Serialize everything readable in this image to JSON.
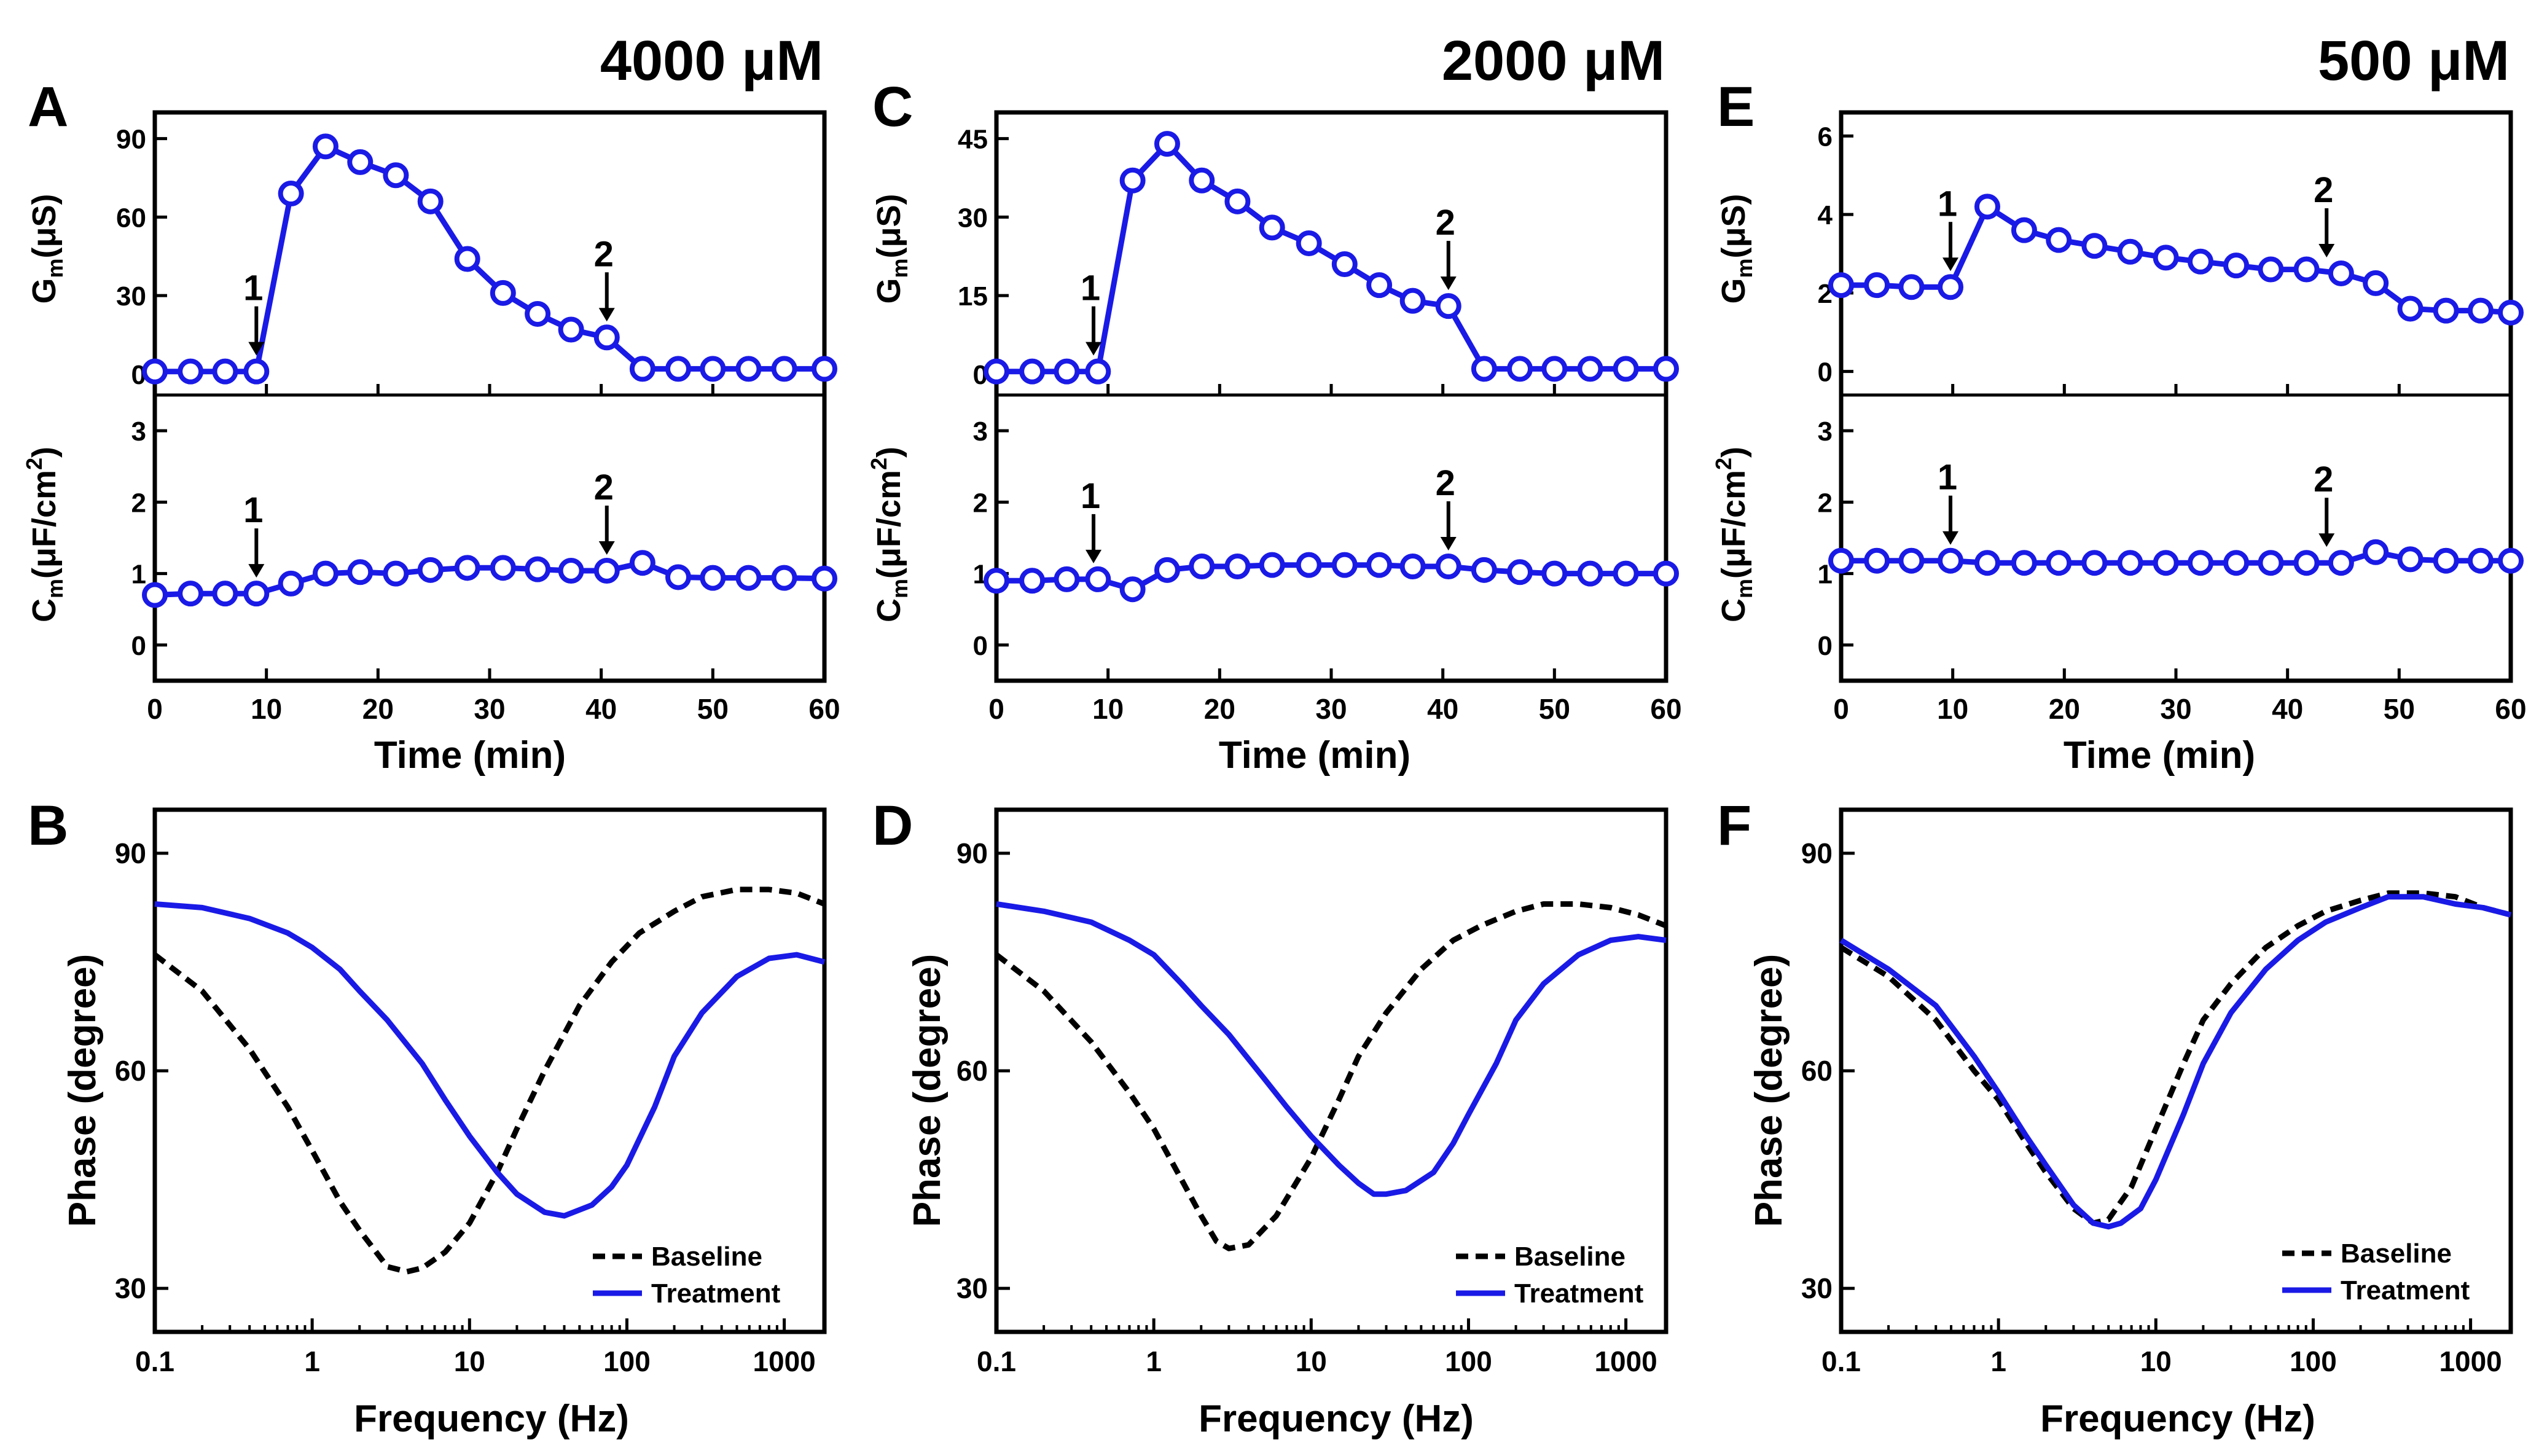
{
  "figure": {
    "panel_letters": [
      "A",
      "B",
      "C",
      "D",
      "E",
      "F"
    ],
    "concentrations": [
      "4000 μM",
      "2000 μM",
      "500 μM"
    ],
    "time_xlabel": "Time (min)",
    "gm_label": "G",
    "gm_sub": "m",
    "gm_unit": "(μS)",
    "cm_label": "C",
    "cm_sub": "m",
    "cm_unit_a": "(μF/cm",
    "cm_unit_sup": "2",
    "cm_unit_b": ")",
    "freq_xlabel": "Frequency (Hz)",
    "phase_ylabel": "Phase (degree)",
    "legend_baseline": "Baseline",
    "legend_treatment": "Treatment",
    "series_color": "#1a1ae6",
    "baseline_color": "#000000"
  },
  "chart_data": [
    {
      "panel": "A",
      "type": "line",
      "title": "4000 μM",
      "xlabel": "Time (min)",
      "xlim": [
        0,
        60
      ],
      "x_ticks": [
        0,
        10,
        20,
        30,
        40,
        50,
        60
      ],
      "subplots": [
        {
          "ylabel": "Gm(μS)",
          "ylim": [
            -8,
            100
          ],
          "y_ticks": [
            0,
            30,
            60,
            90
          ],
          "x": [
            0,
            3.2,
            6.3,
            9.1,
            12.2,
            15.3,
            18.4,
            21.6,
            24.7,
            28,
            31.2,
            34.3,
            37.3,
            40.5,
            43.7,
            46.9,
            50,
            53.2,
            56.4,
            60
          ],
          "y": [
            1,
            1,
            1,
            1,
            69,
            87,
            81,
            76,
            66,
            44,
            31,
            23,
            17,
            14,
            2,
            2,
            2,
            2,
            2,
            2
          ],
          "arrows": [
            {
              "label": "1",
              "x": 9.1
            },
            {
              "label": "2",
              "x": 40.5
            }
          ]
        },
        {
          "ylabel": "Cm(μF/cm2)",
          "ylim": [
            -0.5,
            3.5
          ],
          "y_ticks": [
            0,
            1,
            2,
            3
          ],
          "x": [
            0,
            3.2,
            6.3,
            9.1,
            12.2,
            15.3,
            18.4,
            21.6,
            24.7,
            28,
            31.2,
            34.3,
            37.3,
            40.5,
            43.7,
            46.9,
            50,
            53.2,
            56.4,
            60
          ],
          "y": [
            0.7,
            0.72,
            0.72,
            0.72,
            0.86,
            1.0,
            1.02,
            1.0,
            1.05,
            1.08,
            1.08,
            1.06,
            1.04,
            1.04,
            1.15,
            0.95,
            0.94,
            0.94,
            0.94,
            0.93
          ],
          "arrows": [
            {
              "label": "1",
              "x": 9.1
            },
            {
              "label": "2",
              "x": 40.5
            }
          ]
        }
      ]
    },
    {
      "panel": "C",
      "type": "line",
      "title": "2000 μM",
      "xlabel": "Time (min)",
      "xlim": [
        0,
        60
      ],
      "x_ticks": [
        0,
        10,
        20,
        30,
        40,
        50,
        60
      ],
      "subplots": [
        {
          "ylabel": "Gm(μS)",
          "ylim": [
            -4,
            50
          ],
          "y_ticks": [
            0,
            15,
            30,
            45
          ],
          "x": [
            0,
            3.2,
            6.3,
            9.1,
            12.2,
            15.3,
            18.4,
            21.6,
            24.7,
            28,
            31.2,
            34.3,
            37.3,
            40.5,
            43.7,
            46.9,
            50,
            53.2,
            56.4,
            60
          ],
          "y": [
            0.5,
            0.5,
            0.5,
            0.5,
            37,
            44,
            37,
            33,
            28,
            25,
            21,
            17,
            14,
            13,
            1,
            1,
            1,
            1,
            1,
            1
          ],
          "arrows": [
            {
              "label": "1",
              "x": 8.7
            },
            {
              "label": "2",
              "x": 40.5
            }
          ]
        },
        {
          "ylabel": "Cm(μF/cm2)",
          "ylim": [
            -0.5,
            3.5
          ],
          "y_ticks": [
            0,
            1,
            2,
            3
          ],
          "x": [
            0,
            3.2,
            6.3,
            9.1,
            12.2,
            15.3,
            18.4,
            21.6,
            24.7,
            28,
            31.2,
            34.3,
            37.3,
            40.5,
            43.7,
            46.9,
            50,
            53.2,
            56.4,
            60
          ],
          "y": [
            0.9,
            0.9,
            0.92,
            0.92,
            0.78,
            1.05,
            1.1,
            1.1,
            1.12,
            1.12,
            1.12,
            1.12,
            1.1,
            1.1,
            1.05,
            1.02,
            1.0,
            1.0,
            1.0,
            1.0
          ],
          "arrows": [
            {
              "label": "1",
              "x": 8.7
            },
            {
              "label": "2",
              "x": 40.5
            }
          ]
        }
      ]
    },
    {
      "panel": "E",
      "type": "line",
      "title": "500 μM",
      "xlabel": "Time (min)",
      "xlim": [
        0,
        60
      ],
      "x_ticks": [
        0,
        10,
        20,
        30,
        40,
        50,
        60
      ],
      "subplots": [
        {
          "ylabel": "Gm(μS)",
          "ylim": [
            -0.6,
            6.6
          ],
          "y_ticks": [
            0,
            2,
            4,
            6
          ],
          "x": [
            0,
            3.2,
            6.3,
            9.8,
            13.1,
            16.4,
            19.5,
            22.7,
            25.9,
            29.1,
            32.2,
            35.4,
            38.5,
            41.7,
            44.8,
            47.9,
            51,
            54.2,
            57.3,
            60
          ],
          "y": [
            2.2,
            2.2,
            2.15,
            2.15,
            4.2,
            3.6,
            3.35,
            3.2,
            3.05,
            2.9,
            2.8,
            2.7,
            2.6,
            2.6,
            2.5,
            2.25,
            1.6,
            1.55,
            1.55,
            1.5
          ],
          "arrows": [
            {
              "label": "1",
              "x": 9.8
            },
            {
              "label": "2",
              "x": 43.5
            }
          ]
        },
        {
          "ylabel": "Cm(μF/cm2)",
          "ylim": [
            -0.5,
            3.5
          ],
          "y_ticks": [
            0,
            1,
            2,
            3
          ],
          "x": [
            0,
            3.2,
            6.3,
            9.8,
            13.1,
            16.4,
            19.5,
            22.7,
            25.9,
            29.1,
            32.2,
            35.4,
            38.5,
            41.7,
            44.8,
            47.9,
            51,
            54.2,
            57.3,
            60
          ],
          "y": [
            1.18,
            1.18,
            1.18,
            1.18,
            1.15,
            1.15,
            1.15,
            1.15,
            1.15,
            1.15,
            1.15,
            1.15,
            1.15,
            1.15,
            1.15,
            1.3,
            1.2,
            1.18,
            1.18,
            1.18
          ],
          "arrows": [
            {
              "label": "1",
              "x": 9.8
            },
            {
              "label": "2",
              "x": 43.5
            }
          ]
        }
      ]
    },
    {
      "panel": "B",
      "type": "line",
      "xlabel": "Frequency (Hz)",
      "ylabel": "Phase (degree)",
      "xscale": "log",
      "xlim": [
        0.1,
        1800
      ],
      "ylim": [
        24,
        96
      ],
      "x_ticks": [
        0.1,
        1,
        10,
        100,
        1000
      ],
      "x_tick_labels": [
        "0.1",
        "1",
        "10",
        "100",
        "1000"
      ],
      "y_ticks": [
        30,
        60,
        90
      ],
      "legend": "bottom-right",
      "series": [
        {
          "name": "Baseline",
          "style": "dashed",
          "x": [
            0.1,
            0.2,
            0.4,
            0.7,
            1,
            1.5,
            2,
            3,
            4,
            5,
            7,
            10,
            15,
            20,
            30,
            50,
            80,
            120,
            200,
            300,
            500,
            800,
            1200,
            1800
          ],
          "y": [
            76,
            71,
            63,
            55,
            49,
            42,
            38,
            33,
            32.3,
            32.8,
            35,
            39,
            46,
            52,
            60,
            69,
            75,
            79,
            82,
            84,
            85,
            85,
            84.5,
            83
          ]
        },
        {
          "name": "Treatment",
          "style": "solid",
          "x": [
            0.1,
            0.2,
            0.4,
            0.7,
            1,
            1.5,
            2,
            3,
            5,
            7,
            10,
            15,
            20,
            30,
            40,
            60,
            80,
            100,
            150,
            200,
            300,
            500,
            800,
            1200,
            1800
          ],
          "y": [
            83,
            82.5,
            81,
            79,
            77,
            74,
            71,
            67,
            61,
            56,
            51,
            46,
            43,
            40.5,
            40,
            41.5,
            44,
            47,
            55,
            62,
            68,
            73,
            75.5,
            76,
            75
          ]
        }
      ]
    },
    {
      "panel": "D",
      "type": "line",
      "xlabel": "Frequency (Hz)",
      "ylabel": "Phase (degree)",
      "xscale": "log",
      "xlim": [
        0.1,
        1800
      ],
      "ylim": [
        24,
        96
      ],
      "x_ticks": [
        0.1,
        1,
        10,
        100,
        1000
      ],
      "x_tick_labels": [
        "0.1",
        "1",
        "10",
        "100",
        "1000"
      ],
      "y_ticks": [
        30,
        60,
        90
      ],
      "legend": "bottom-right",
      "series": [
        {
          "name": "Baseline",
          "style": "dashed",
          "x": [
            0.1,
            0.2,
            0.4,
            0.7,
            1,
            1.5,
            2,
            2.5,
            3,
            4,
            6,
            10,
            15,
            20,
            30,
            50,
            80,
            120,
            200,
            300,
            500,
            800,
            1200,
            1800
          ],
          "y": [
            76,
            71,
            64,
            57,
            52,
            45,
            40,
            36.5,
            35.5,
            36,
            40,
            48,
            56,
            62,
            68,
            74,
            78,
            80,
            82,
            83,
            83,
            82.5,
            81.5,
            80
          ]
        },
        {
          "name": "Treatment",
          "style": "solid",
          "x": [
            0.1,
            0.2,
            0.4,
            0.7,
            1,
            1.5,
            2,
            3,
            5,
            7,
            10,
            15,
            20,
            25,
            30,
            40,
            60,
            80,
            100,
            150,
            200,
            300,
            500,
            800,
            1200,
            1800
          ],
          "y": [
            83,
            82,
            80.5,
            78,
            76,
            72,
            69,
            65,
            59,
            55,
            51,
            47,
            44.5,
            43,
            43,
            43.5,
            46,
            50,
            54,
            61,
            67,
            72,
            76,
            78,
            78.5,
            78
          ]
        }
      ]
    },
    {
      "panel": "F",
      "type": "line",
      "xlabel": "Frequency (Hz)",
      "ylabel": "Phase (degree)",
      "xscale": "log",
      "xlim": [
        0.1,
        1800
      ],
      "ylim": [
        24,
        96
      ],
      "x_ticks": [
        0.1,
        1,
        10,
        100,
        1000
      ],
      "x_tick_labels": [
        "0.1",
        "1",
        "10",
        "100",
        "1000"
      ],
      "y_ticks": [
        30,
        60,
        90
      ],
      "legend": "bottom-right",
      "series": [
        {
          "name": "Baseline",
          "style": "dashed",
          "x": [
            0.1,
            0.2,
            0.4,
            0.7,
            1,
            1.5,
            2,
            3,
            4,
            5,
            7,
            10,
            15,
            20,
            30,
            50,
            80,
            120,
            200,
            300,
            500,
            800,
            1200,
            1800
          ],
          "y": [
            77,
            73,
            67,
            60,
            56,
            50,
            46,
            41,
            39,
            39.5,
            44,
            52,
            61,
            67,
            72,
            77,
            80,
            82,
            83.5,
            84.5,
            84.5,
            84,
            82.5,
            81.5
          ]
        },
        {
          "name": "Treatment",
          "style": "solid",
          "x": [
            0.1,
            0.2,
            0.4,
            0.7,
            1,
            1.5,
            2,
            3,
            4,
            5,
            6,
            8,
            10,
            15,
            20,
            30,
            50,
            80,
            120,
            200,
            300,
            500,
            800,
            1200,
            1800
          ],
          "y": [
            78,
            74,
            69,
            62,
            57,
            51,
            47,
            41.5,
            39,
            38.5,
            39,
            41,
            45,
            54,
            61,
            68,
            74,
            78,
            80.5,
            82.5,
            84,
            84,
            83,
            82.5,
            81.5
          ]
        }
      ]
    }
  ]
}
